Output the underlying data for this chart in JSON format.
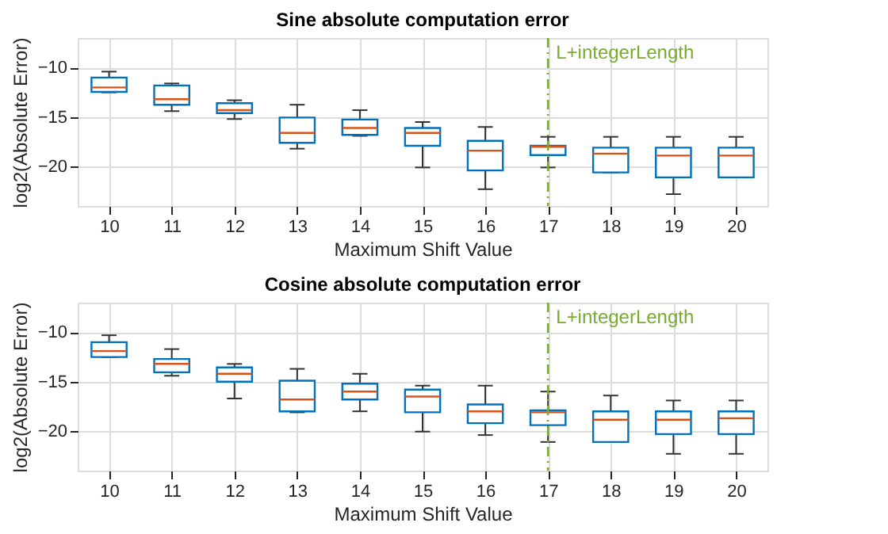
{
  "chart_data": [
    {
      "type": "box",
      "title": "Sine absolute computation error",
      "xlabel": "Maximum Shift Value",
      "ylabel": "log2(Absolute Error)",
      "color": "#0072bd",
      "x": [
        10,
        11,
        12,
        13,
        14,
        15,
        16,
        17,
        18,
        19,
        20
      ],
      "xlim": [
        9.5,
        20.5
      ],
      "xticks": [
        10,
        11,
        12,
        13,
        14,
        15,
        16,
        17,
        18,
        19,
        20
      ],
      "ylim": [
        -24,
        -7
      ],
      "yticks": [
        -20,
        -15,
        -10
      ],
      "grid": true,
      "boxes": [
        {
          "low": -12.5,
          "q1": -12.45,
          "median": -12.0,
          "q3": -11.0,
          "high": -10.4
        },
        {
          "low": -14.4,
          "q1": -13.75,
          "median": -13.2,
          "q3": -11.8,
          "high": -11.6
        },
        {
          "low": -15.2,
          "q1": -14.6,
          "median": -14.3,
          "q3": -13.6,
          "high": -13.3
        },
        {
          "low": -18.2,
          "q1": -17.6,
          "median": -16.6,
          "q3": -15.05,
          "high": -13.75
        },
        {
          "low": -16.9,
          "q1": -16.8,
          "median": -16.1,
          "q3": -15.25,
          "high": -14.3
        },
        {
          "low": -20.1,
          "q1": -17.9,
          "median": -16.6,
          "q3": -16.1,
          "high": -15.5
        },
        {
          "low": -22.3,
          "q1": -20.4,
          "median": -18.4,
          "q3": -17.4,
          "high": -16.0
        },
        {
          "low": -20.1,
          "q1": -18.85,
          "median": -18.0,
          "q3": -17.9,
          "high": -17.0
        },
        {
          "low": -20.6,
          "q1": -20.6,
          "median": -18.7,
          "q3": -18.1,
          "high": -17.0
        },
        {
          "low": -22.8,
          "q1": -21.1,
          "median": -18.9,
          "q3": -18.1,
          "high": -17.0
        },
        {
          "low": -21.1,
          "q1": -21.1,
          "median": -18.9,
          "q3": -18.1,
          "high": -17.0
        }
      ],
      "ref_lines": [
        {
          "axis": "x",
          "value": 17,
          "label": "L+integerLength",
          "color": "#77ac30",
          "line_style": "dashed"
        }
      ]
    },
    {
      "type": "box",
      "title": "Cosine absolute computation error",
      "xlabel": "Maximum Shift Value",
      "ylabel": "log2(Absolute Error)",
      "color": "#0072bd",
      "x": [
        10,
        11,
        12,
        13,
        14,
        15,
        16,
        17,
        18,
        19,
        20
      ],
      "xlim": [
        9.5,
        20.5
      ],
      "xticks": [
        10,
        11,
        12,
        13,
        14,
        15,
        16,
        17,
        18,
        19,
        20
      ],
      "ylim": [
        -24,
        -7
      ],
      "yticks": [
        -20,
        -15,
        -10
      ],
      "grid": true,
      "boxes": [
        {
          "low": -12.5,
          "q1": -12.5,
          "median": -11.9,
          "q3": -11.0,
          "high": -10.3
        },
        {
          "low": -14.4,
          "q1": -14.05,
          "median": -13.2,
          "q3": -12.7,
          "high": -11.7
        },
        {
          "low": -16.7,
          "q1": -15.0,
          "median": -14.2,
          "q3": -13.55,
          "high": -13.2
        },
        {
          "low": -18.1,
          "q1": -18.0,
          "median": -16.8,
          "q3": -14.9,
          "high": -13.7
        },
        {
          "low": -18.0,
          "q1": -16.8,
          "median": -16.0,
          "q3": -15.2,
          "high": -14.2
        },
        {
          "low": -20.05,
          "q1": -18.1,
          "median": -16.5,
          "q3": -15.8,
          "high": -15.4
        },
        {
          "low": -20.4,
          "q1": -19.2,
          "median": -18.0,
          "q3": -17.3,
          "high": -15.4
        },
        {
          "low": -21.1,
          "q1": -19.4,
          "median": -18.1,
          "q3": -17.9,
          "high": -16.0
        },
        {
          "low": -21.1,
          "q1": -21.1,
          "median": -18.85,
          "q3": -18.0,
          "high": -16.4
        },
        {
          "low": -22.3,
          "q1": -20.3,
          "median": -18.85,
          "q3": -18.0,
          "high": -16.9
        },
        {
          "low": -22.3,
          "q1": -20.3,
          "median": -18.7,
          "q3": -18.0,
          "high": -16.9
        }
      ],
      "ref_lines": [
        {
          "axis": "x",
          "value": 17,
          "label": "L+integerLength",
          "color": "#77ac30",
          "line_style": "dashed"
        }
      ]
    }
  ]
}
